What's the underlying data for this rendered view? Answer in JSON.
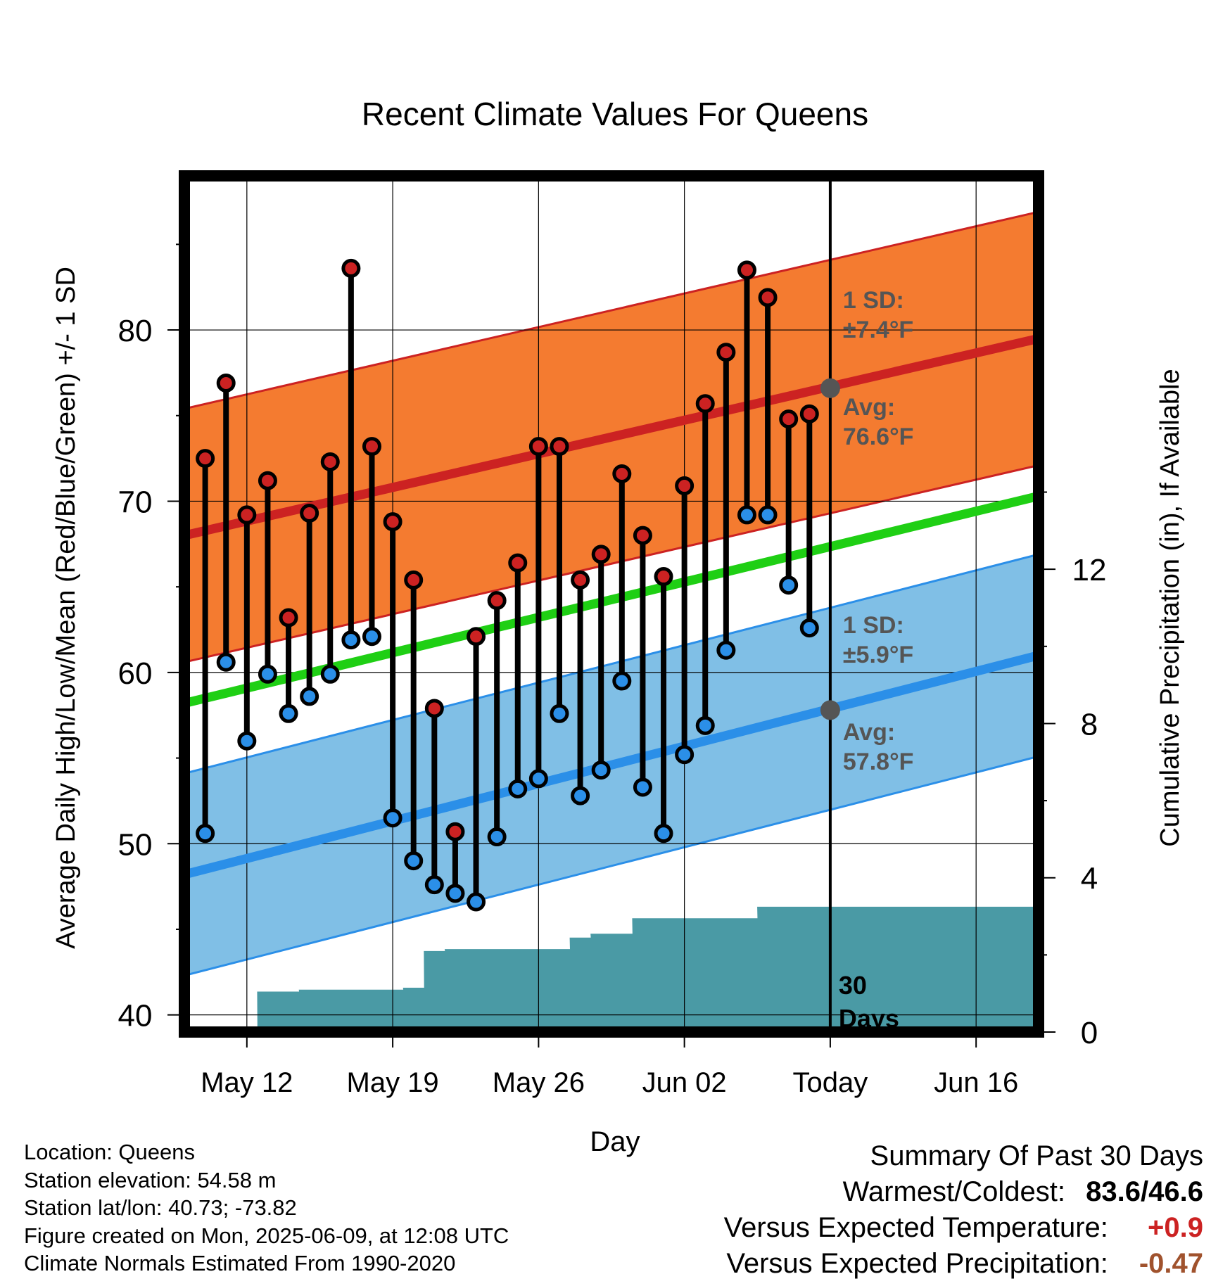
{
  "chart_data": {
    "type": "line",
    "title": "Recent Climate Values For Queens",
    "xlabel": "Day",
    "ylabel": "Average Daily High/Low/Mean (Red/Blue/Green) +/- 1 SD",
    "y2label": "Cumulative Precipitation (in), If Available",
    "ylim": [
      39,
      89
    ],
    "y2lim": [
      0,
      22.2
    ],
    "y_ticks": [
      40,
      50,
      60,
      70,
      80
    ],
    "y2_ticks": [
      0,
      4,
      8,
      12
    ],
    "x_range": [
      "May 09",
      "Jun 19"
    ],
    "x_tick_dates": [
      "May 12",
      "May 19",
      "May 26",
      "Jun 02",
      "Jun 09",
      "Jun 16"
    ],
    "x_tick_labels": [
      "May 12",
      "May 19",
      "May 26",
      "Jun 02",
      "Today",
      "Jun 16"
    ],
    "grid": true,
    "today": "Jun 09",
    "dates": [
      "May 10",
      "May 11",
      "May 12",
      "May 13",
      "May 14",
      "May 15",
      "May 16",
      "May 17",
      "May 18",
      "May 19",
      "May 20",
      "May 21",
      "May 22",
      "May 23",
      "May 24",
      "May 25",
      "May 26",
      "May 27",
      "May 28",
      "May 29",
      "May 30",
      "May 31",
      "Jun 01",
      "Jun 02",
      "Jun 03",
      "Jun 04",
      "Jun 05",
      "Jun 06",
      "Jun 07",
      "Jun 08"
    ],
    "series": [
      {
        "name": "High",
        "color": "#cc2222",
        "values": [
          72.5,
          76.9,
          69.2,
          71.2,
          63.2,
          69.3,
          72.3,
          83.6,
          73.2,
          68.8,
          65.4,
          57.9,
          50.7,
          62.1,
          64.2,
          66.4,
          73.2,
          73.2,
          65.4,
          66.9,
          71.6,
          68.0,
          65.6,
          70.9,
          75.7,
          78.7,
          83.5,
          81.9,
          74.8,
          75.1
        ]
      },
      {
        "name": "Low",
        "color": "#2b8fe8",
        "values": [
          50.6,
          60.6,
          56.0,
          59.9,
          57.6,
          58.6,
          59.9,
          61.9,
          62.1,
          51.5,
          49.0,
          47.6,
          47.1,
          46.6,
          50.4,
          53.2,
          53.8,
          57.6,
          52.8,
          54.3,
          59.5,
          53.3,
          50.6,
          55.2,
          56.9,
          61.3,
          69.2,
          69.2,
          65.1,
          62.6
        ]
      },
      {
        "name": "Cumulative Precipitation",
        "color": "#4a9aa5",
        "values": [
          0,
          0,
          0,
          1.05,
          1.05,
          1.1,
          1.1,
          1.1,
          1.1,
          1.1,
          1.15,
          2.1,
          2.15,
          2.15,
          2.15,
          2.15,
          2.15,
          2.15,
          2.45,
          2.55,
          2.55,
          2.95,
          2.95,
          2.95,
          2.95,
          2.95,
          2.95,
          3.25,
          3.25,
          3.25
        ]
      }
    ],
    "normals": {
      "high_avg": [
        68.0,
        79.5
      ],
      "high_sd": 7.4,
      "low_avg": [
        48.2,
        61.0
      ],
      "low_sd": 5.9,
      "mean_avg": [
        58.2,
        70.3
      ]
    },
    "annotations": {
      "high_sd": [
        "1 SD:",
        "±7.4°F"
      ],
      "high_avg": [
        "Avg:",
        "76.6°F"
      ],
      "low_sd": [
        "1 SD:",
        "±5.9°F"
      ],
      "low_avg": [
        "Avg:",
        "57.8°F"
      ],
      "period": [
        "30",
        "Days"
      ]
    },
    "today_high_avg": 76.6,
    "today_low_avg": 57.8,
    "colors": {
      "high_band": "#f47b30",
      "high_line": "#cc2222",
      "low_band": "#80bfe6",
      "low_line": "#2b8fe8",
      "mean_line": "#1fcf14",
      "precip": "#4a9aa5",
      "annotation": "#555555"
    }
  },
  "info": {
    "location": "Location: Queens",
    "elevation": "Station elevation: 54.58 m",
    "latlon": "Station lat/lon: 40.73; -73.82",
    "created": "Figure created on Mon, 2025-06-09, at 12:08 UTC",
    "normals": "Climate Normals Estimated From 1990-2020"
  },
  "summary": {
    "title": "Summary Of Past 30 Days",
    "warmest_label": "Warmest/Coldest:",
    "warmest": "83.6",
    "slash": "/",
    "coldest": "46.6",
    "temp_label": "Versus Expected Temperature:",
    "temp_value": "+0.9",
    "temp_color": "#cc2222",
    "precip_label": "Versus Expected Precipitation:",
    "precip_value": "-0.47",
    "precip_color": "#a0522d"
  }
}
